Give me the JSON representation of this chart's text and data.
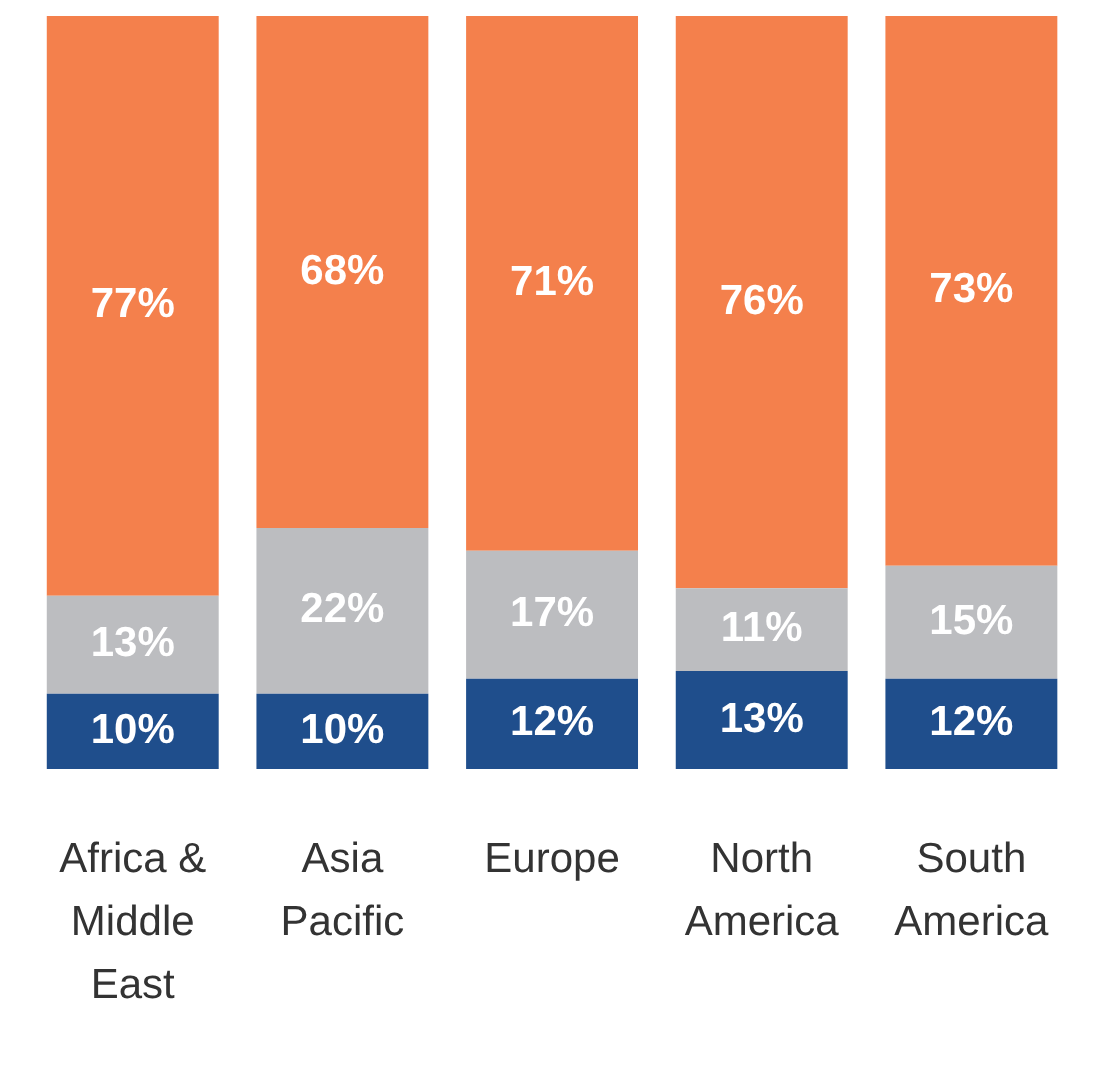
{
  "chart_data": {
    "type": "bar",
    "stacked": true,
    "legend": false,
    "grid": false,
    "tick_labels": "x",
    "categories": [
      "Africa & Middle East",
      "Asia Pacific",
      "Europe",
      "North America",
      "South America"
    ],
    "series": [
      {
        "color": "#1f4e8c",
        "values": [
          10,
          10,
          12,
          13,
          12
        ],
        "value_labels": [
          "10%",
          "10%",
          "12%",
          "13%",
          "12%"
        ]
      },
      {
        "color": "#bcbdc0",
        "values": [
          13,
          22,
          17,
          11,
          15
        ],
        "value_labels": [
          "13%",
          "22%",
          "17%",
          "11%",
          "15%"
        ]
      },
      {
        "color": "#f4804c",
        "values": [
          77,
          68,
          71,
          76,
          73
        ],
        "value_labels": [
          "77%",
          "68%",
          "71%",
          "76%",
          "73%"
        ]
      }
    ]
  }
}
